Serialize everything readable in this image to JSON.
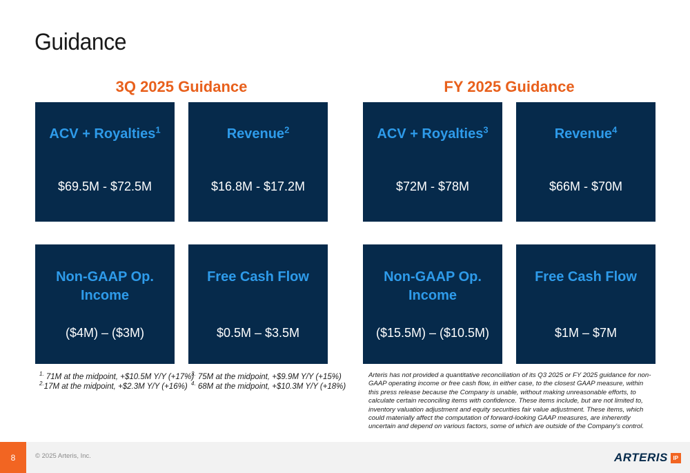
{
  "title": "Guidance",
  "sections": [
    {
      "heading": "3Q 2025 Guidance",
      "cards": [
        {
          "title": "ACV + Royalties",
          "sup": "1",
          "value": "$69.5M - $72.5M"
        },
        {
          "title": "Revenue",
          "sup": "2",
          "value": "$16.8M - $17.2M"
        },
        {
          "title_line1": "Non-GAAP Op.",
          "title_line2": "Income",
          "value": "($4M) – ($3M)"
        },
        {
          "title": "Free Cash Flow",
          "value": "$0.5M – $3.5M"
        }
      ]
    },
    {
      "heading": "FY 2025 Guidance",
      "cards": [
        {
          "title": "ACV + Royalties",
          "sup": "3",
          "value": "$72M - $78M"
        },
        {
          "title": "Revenue",
          "sup": "4",
          "value": "$66M - $70M"
        },
        {
          "title_line1": "Non-GAAP Op.",
          "title_line2": "Income",
          "value": "($15.5M) – ($10.5M)"
        },
        {
          "title": "Free Cash Flow",
          "value": "$1M – $7M"
        }
      ]
    }
  ],
  "footnotes": [
    {
      "num": "1.",
      "text": "71M at the midpoint, +$10.5M Y/Y (+17%)"
    },
    {
      "num": "2.",
      "text": "17M at the midpoint, +$2.3M Y/Y (+16%)"
    },
    {
      "num": "3.",
      "text": "75M at the midpoint, +$9.9M Y/Y (+15%)"
    },
    {
      "num": "4.",
      "text": "68M at the midpoint, +$10.3M Y/Y (+18%)"
    }
  ],
  "disclaimer": "Arteris has not provided a quantitative reconciliation of its Q3 2025 or FY 2025 guidance for non-GAAP operating income or free cash flow, in either case, to the closest GAAP measure, within this press release because the Company is unable, without making unreasonable efforts, to calculate certain reconciling items with confidence. These items include, but are not limited to, inventory valuation adjustment and equity securities fair value adjustment. These items, which could materially affect the computation of forward-looking GAAP measures, are inherently uncertain and depend on various factors, some of which are outside of the Company's control.",
  "footer": {
    "page_number": "8",
    "copyright": "© 2025 Arteris, Inc.",
    "logo_word": "ARTERIS",
    "logo_badge": "IP"
  },
  "colors": {
    "card_bg": "#062a4b",
    "card_title": "#2e9bea",
    "heading": "#e8601c",
    "accent": "#f26522"
  }
}
